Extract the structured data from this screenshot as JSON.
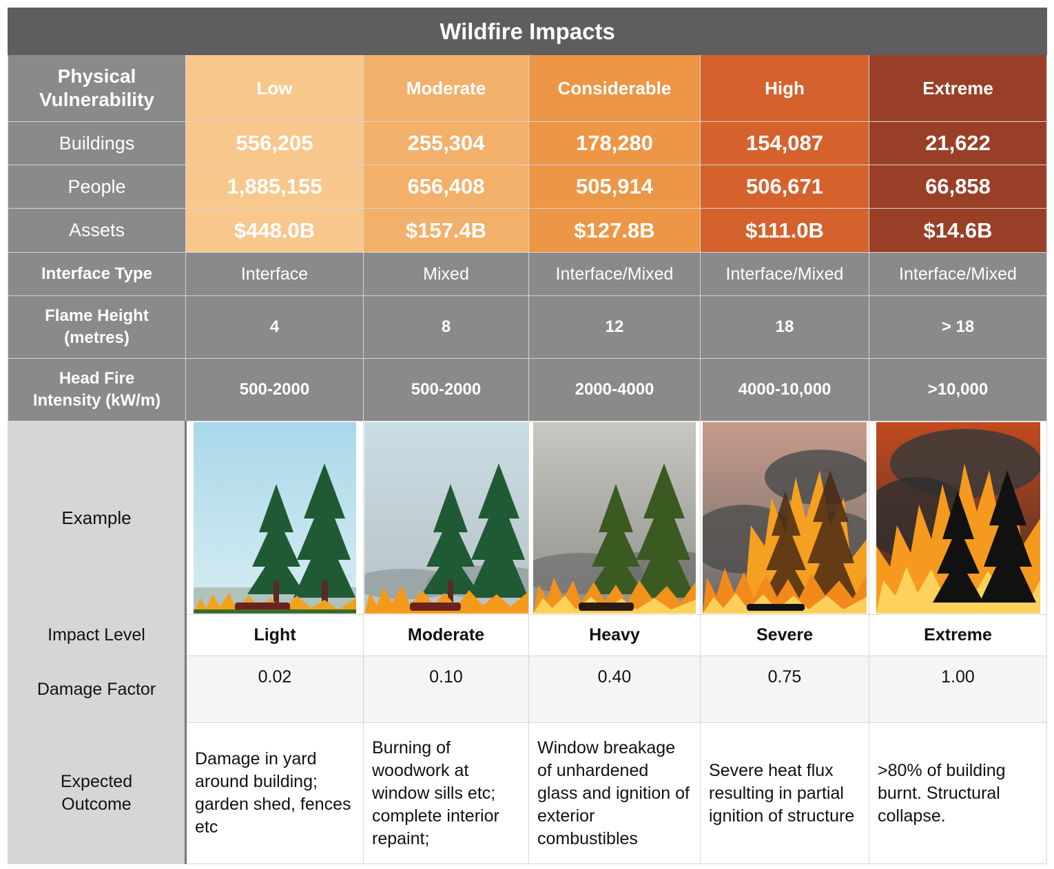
{
  "title": "Wildfire Impacts",
  "header_label": "Physical Vulnerability",
  "levels": [
    "Low",
    "Moderate",
    "Considerable",
    "High",
    "Extreme"
  ],
  "buildings": {
    "label": "Buildings",
    "values": [
      "556,205",
      "255,304",
      "178,280",
      "154,087",
      "21,622"
    ]
  },
  "people": {
    "label": "People",
    "values": [
      "1,885,155",
      "656,408",
      "505,914",
      "506,671",
      "66,858"
    ]
  },
  "assets": {
    "label": "Assets",
    "values": [
      "$448.0B",
      "$157.4B",
      "$127.8B",
      "$111.0B",
      "$14.6B"
    ]
  },
  "interface_type": {
    "label": "Interface Type",
    "values": [
      "Interface",
      "Mixed",
      "Interface/Mixed",
      "Interface/Mixed",
      "Interface/Mixed"
    ]
  },
  "flame_height": {
    "label": "Flame Height (metres)",
    "values": [
      "4",
      "8",
      "12",
      "18",
      "> 18"
    ]
  },
  "head_fire": {
    "label": "Head Fire Intensity (kW/m)",
    "values": [
      "500-2000",
      "500-2000",
      "2000-4000",
      "4000-10,000",
      ">10,000"
    ]
  },
  "example": {
    "label": "Example"
  },
  "impact_level": {
    "label": "Impact Level",
    "values": [
      "Light",
      "Moderate",
      "Heavy",
      "Severe",
      "Extreme"
    ]
  },
  "damage_factor": {
    "label": "Damage Factor",
    "values": [
      "0.02",
      "0.10",
      "0.40",
      "0.75",
      "1.00"
    ]
  },
  "expected_outcome": {
    "label": "Expected Outcome",
    "values": [
      "Damage in yard around building; garden shed, fences etc",
      "Burning of woodwork at window sills etc; complete interior repaint;",
      "Window breakage of unhardened glass and ignition of exterior combustibles",
      "Severe heat flux resulting in partial ignition of structure",
      ">80% of building burnt. Structural collapse."
    ]
  },
  "colors": {
    "low": "#f8c78c",
    "moderate": "#f2b06a",
    "considerable": "#ec9646",
    "high": "#d5622d",
    "extreme": "#9a3f27",
    "grey": "#8a8a8a",
    "title": "#5e5e5e"
  }
}
